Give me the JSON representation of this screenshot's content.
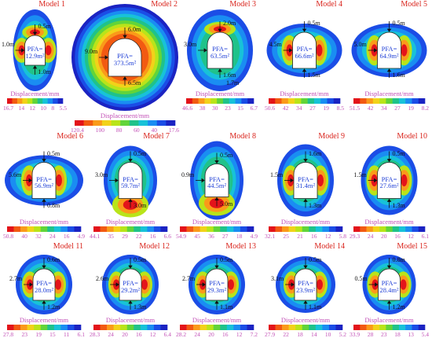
{
  "figure": {
    "legend_label": "Displacement/mm",
    "colors": {
      "title": "#d9231b",
      "legend_text": "#c24fb6",
      "pfa_text": "#1f3fd6",
      "colormap": [
        "#e3141a",
        "#f25a12",
        "#fa9a1a",
        "#f2d21a",
        "#b9e41a",
        "#62d43a",
        "#20c28a",
        "#18c2d8",
        "#1a8df2",
        "#1b4de6",
        "#1b23c2"
      ]
    },
    "models": [
      {
        "title": "Model 1",
        "pfa_label": "PFA=",
        "pfa_value": "12.9m²",
        "dims": [
          "0.5m",
          "1.0m",
          "1.0m"
        ],
        "ticks": [
          "16.7",
          "14",
          "12",
          "10",
          "8",
          "5.5"
        ]
      },
      {
        "title": "Model 2",
        "pfa_label": "PFA=",
        "pfa_value": "373.5m²",
        "dims": [
          "6.0m",
          "9.0m",
          "6.5m"
        ],
        "ticks": [
          "120.4",
          "100",
          "80",
          "60",
          "40",
          "17.6"
        ]
      },
      {
        "title": "Model 3",
        "pfa_label": "PFA=",
        "pfa_value": "63.5m²",
        "dims": [
          "2.0m",
          "3.0m",
          "1.6m",
          "1.7m"
        ],
        "ticks": [
          "46.6",
          "38",
          "30",
          "23",
          "15",
          "6.7"
        ]
      },
      {
        "title": "Model 4",
        "pfa_label": "PFA=",
        "pfa_value": "66.6m²",
        "dims": [
          "0.5m",
          "4.5m",
          "1.5m"
        ],
        "ticks": [
          "50.6",
          "42",
          "34",
          "27",
          "19",
          "8.5"
        ]
      },
      {
        "title": "Model 5",
        "pfa_label": "PFA=",
        "pfa_value": "64.9m²",
        "dims": [
          "0.5m",
          "5.0m",
          "1.6m"
        ],
        "ticks": [
          "51.5",
          "42",
          "34",
          "27",
          "19",
          "8.2"
        ]
      },
      {
        "title": "Model 6",
        "pfa_label": "PFA=",
        "pfa_value": "56.9m²",
        "dims": [
          "0.5m",
          "5.6m",
          "0.8m"
        ],
        "ticks": [
          "50.8",
          "40",
          "32",
          "24",
          "16",
          "4.9"
        ]
      },
      {
        "title": "Model 7",
        "pfa_label": "PFA=",
        "pfa_value": "59.7m²",
        "dims": [
          "0.5m",
          "3.0m",
          "3.0m"
        ],
        "ticks": [
          "44.1",
          "35",
          "29",
          "22",
          "16",
          "6.6"
        ]
      },
      {
        "title": "Model 8",
        "pfa_label": "PFA=",
        "pfa_value": "44.5m²",
        "dims": [
          "0.5m",
          "0.9m",
          "5.0m"
        ],
        "ticks": [
          "54.9",
          "45",
          "36",
          "27",
          "18",
          "4.9"
        ]
      },
      {
        "title": "Model 9",
        "pfa_label": "PFA=",
        "pfa_value": "31.4m²",
        "dims": [
          "1.6m",
          "1.5m",
          "1.3m"
        ],
        "ticks": [
          "32.1",
          "25",
          "21",
          "16",
          "12",
          "5.8"
        ]
      },
      {
        "title": "Model 10",
        "pfa_label": "PFA=",
        "pfa_value": "27.6m²",
        "dims": [
          "0.5m",
          "1.5m",
          "1.3m"
        ],
        "ticks": [
          "29.3",
          "24",
          "20",
          "16",
          "12",
          "6.1"
        ]
      },
      {
        "title": "Model 11",
        "pfa_label": "PFA=",
        "pfa_value": "28.0m²",
        "dims": [
          "0.6m",
          "2.7m",
          "1.2m"
        ],
        "ticks": [
          "27.8",
          "23",
          "19",
          "15",
          "11",
          "6.1"
        ]
      },
      {
        "title": "Model 12",
        "pfa_label": "PFA=",
        "pfa_value": "29.2m²",
        "dims": [
          "0.5m",
          "2.6m",
          "1.3m"
        ],
        "ticks": [
          "28.3",
          "24",
          "20",
          "16",
          "12",
          "6.4"
        ]
      },
      {
        "title": "Model 13",
        "pfa_label": "PFA=",
        "pfa_value": "29.3m²",
        "dims": [
          "0.5m",
          "2.7m",
          "1.1m"
        ],
        "ticks": [
          "28.2",
          "24",
          "20",
          "16",
          "12",
          "7.2"
        ]
      },
      {
        "title": "Model 14",
        "pfa_label": "PFA=",
        "pfa_value": "23.9m²",
        "dims": [
          "0.5m",
          "3.1m",
          "1.1m"
        ],
        "ticks": [
          "27.9",
          "22",
          "18",
          "14",
          "10",
          "5.2"
        ]
      },
      {
        "title": "Model 15",
        "pfa_label": "PFA=",
        "pfa_value": "28.4m²",
        "dims": [
          "0.8m",
          "0.5m",
          "1.2m"
        ],
        "ticks": [
          "33.9",
          "28",
          "23",
          "18",
          "13",
          "5.4"
        ]
      }
    ]
  }
}
